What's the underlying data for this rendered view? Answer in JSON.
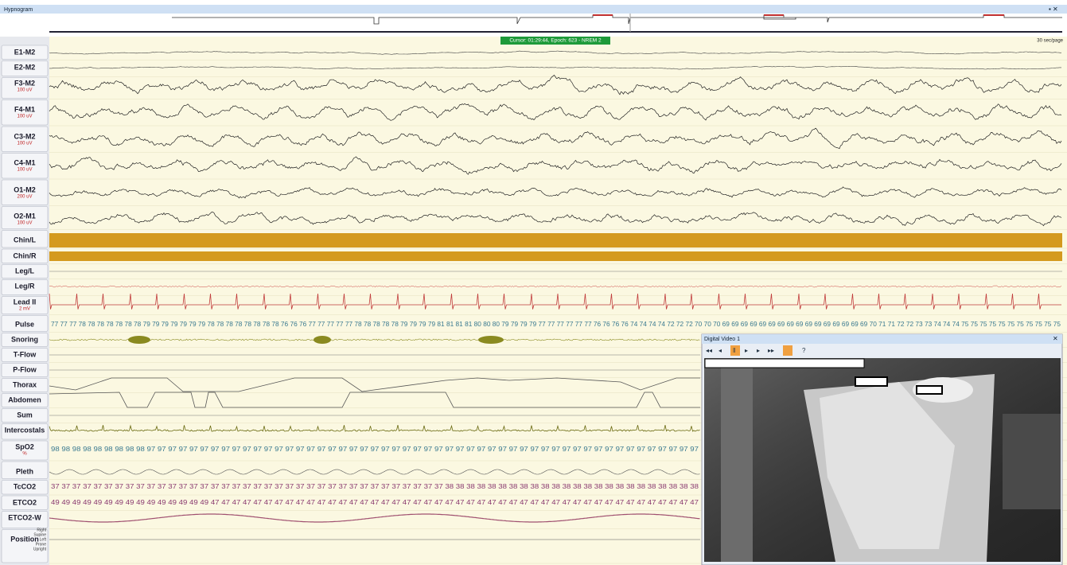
{
  "hypnogram": {
    "title": "Hypnogram"
  },
  "cursor": "Cursor: 01:29:44, Epoch: 623 - NREM 2",
  "page_scale": "30 sec/page",
  "channels": [
    {
      "label": "E1-M2"
    },
    {
      "label": "E2-M2"
    },
    {
      "label": "F3-M2",
      "unit": "100 uV"
    },
    {
      "label": "F4-M1",
      "unit": "100 uV"
    },
    {
      "label": "C3-M2",
      "unit": "100 uV"
    },
    {
      "label": "C4-M1",
      "unit": "100 uV"
    },
    {
      "label": "O1-M2",
      "unit": "200 uV"
    },
    {
      "label": "O2-M1",
      "unit": "100 uV"
    },
    {
      "label": "Chin/L"
    },
    {
      "label": "Chin/R"
    },
    {
      "label": "Leg/L"
    },
    {
      "label": "Leg/R"
    },
    {
      "label": "Lead II",
      "unit": "2 mV"
    },
    {
      "label": "Pulse"
    },
    {
      "label": "Snoring"
    },
    {
      "label": "T-Flow"
    },
    {
      "label": "P-Flow"
    },
    {
      "label": "Thorax"
    },
    {
      "label": "Abdomen"
    },
    {
      "label": "Sum"
    },
    {
      "label": "Intercostals"
    },
    {
      "label": "SpO2",
      "unit": "%"
    },
    {
      "label": "Pleth"
    },
    {
      "label": "TcCO2"
    },
    {
      "label": "ETCO2"
    },
    {
      "label": "ETCO2-W"
    },
    {
      "label": "Position"
    }
  ],
  "value_rows": {
    "pulse": "77 77 77 78 78 78 78 78 78 78 79 79 79 79 79 79 79 78 78 78 78 78 78 78 78 76 76 76 77 77 77 77 77 78 78 78 78 78 79 79 79 79 81 81 81 81 80 80 80 79 79 79 79 77 77 77 77 77 77 76 76 76 76 74 74 74 74 72 72 72 70 70 70 69 69 69 69 69 69 69 69 69 69 69 69 69 69 69 69 70 71 71 72 72 73 73 74 74 74 75 75 75 75 75 75 75 75 75 75 75",
    "spo2": "98 98 98 98 98 98 98 98 98 97 97 97 97 97 97 97 97 97 97 97 97 97 97 97 97 97 97 97 97 97 97 97 97 97 97 97 97 97 97 97 97 97 97 97 97 97 97 97 97 97 97 97 97 97 97 97 97 97 97 97 97",
    "tcco2": "37 37 37 37 37 37 37 37 37 37 37 37 37 37 37 37 37 37 37 37 37 37 37 37 37 37 37 37 37 37 37 37 37 37 37 37 37 38 38 38 38 38 38 38 38 38 38 38 38 38 38 38 38 38 38 38 38 38 38 38 38",
    "etco2": "49 49 49 49 49 49 49 49 49 49 49 49 49 49 49 47 47 47 47 47 47 47 47 47 47 47 47 47 47 47 47 47 47 47 47 47 47 47 47 47 47 47 47 47 47 47 47 47 47 47 47 47 47 47 47 47 47 47 47 47 47"
  },
  "position_states": [
    "Right",
    "Supine",
    "Left",
    "Prone",
    "Upright"
  ],
  "video": {
    "title": "Digital Video 1"
  }
}
